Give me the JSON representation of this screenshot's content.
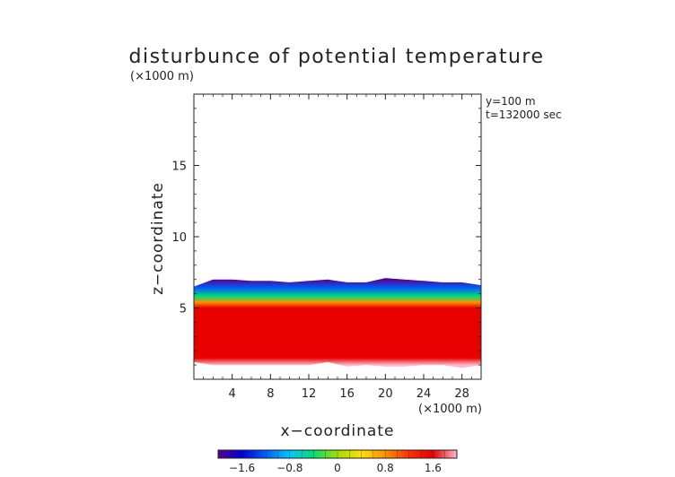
{
  "chart_data": {
    "type": "heatmap",
    "title": "disturbunce of potential temperature",
    "x_unit_note": "(×1000 m)",
    "y_unit_note": "(×1000 m)",
    "xlabel": "x−coordinate",
    "ylabel": "z−coordinate",
    "annotations": [
      "y=100  m",
      "t=132000 sec"
    ],
    "xlim": [
      0,
      30
    ],
    "ylim": [
      0,
      20
    ],
    "x_ticks": [
      4,
      8,
      12,
      16,
      20,
      24,
      28
    ],
    "x_tick_labels": [
      "4",
      "8",
      "12",
      "16",
      "20",
      "24",
      "28"
    ],
    "y_ticks": [
      5,
      10,
      15
    ],
    "y_tick_labels": [
      "5",
      "10",
      "15"
    ],
    "colorbar": {
      "range": [
        -2.0,
        2.0
      ],
      "ticks": [
        -1.6,
        -0.8,
        0,
        0.8,
        1.6
      ],
      "tick_labels": [
        "−1.6",
        "−0.8",
        "0",
        "0.8",
        "1.6"
      ],
      "colors": [
        "#5a008c",
        "#0000d8",
        "#0060ff",
        "#00c8ff",
        "#00e070",
        "#a0e000",
        "#ffe000",
        "#ff9000",
        "#ff3000",
        "#e80000",
        "#ffb8c8"
      ]
    },
    "field": {
      "x": [
        0,
        2,
        4,
        6,
        8,
        10,
        12,
        14,
        16,
        18,
        20,
        22,
        24,
        26,
        28,
        30
      ],
      "top_height": [
        6.5,
        7.0,
        7.0,
        6.9,
        6.9,
        6.8,
        6.9,
        7.0,
        6.8,
        6.8,
        7.1,
        7.0,
        6.9,
        6.8,
        6.8,
        6.6
      ],
      "bottom_height": [
        1.2,
        1.0,
        1.0,
        1.0,
        1.0,
        1.0,
        1.0,
        1.2,
        0.9,
        1.0,
        0.9,
        0.9,
        1.0,
        1.0,
        0.8,
        1.0
      ],
      "layers": [
        {
          "z": 7.0,
          "value": -1.8
        },
        {
          "z": 6.4,
          "value": -1.2
        },
        {
          "z": 5.8,
          "value": -0.4
        },
        {
          "z": 5.4,
          "value": 0.6
        },
        {
          "z": 5.0,
          "value": 1.4
        },
        {
          "z": 3.0,
          "value": 1.6
        },
        {
          "z": 1.5,
          "value": 1.75
        },
        {
          "z": 1.0,
          "value": 2.0
        }
      ]
    }
  }
}
